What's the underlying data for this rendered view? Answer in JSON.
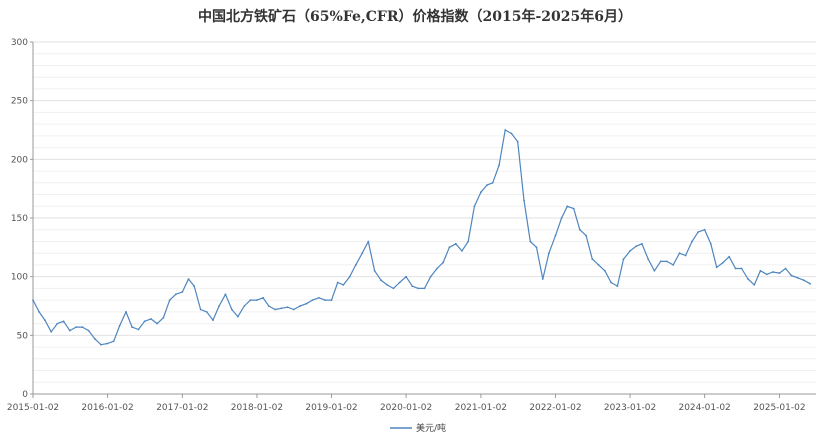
{
  "chart_data": {
    "type": "line",
    "title": "中国北方铁矿石（65%Fe,CFR）价格指数（2015年-2025年6月）",
    "xlabel": "",
    "ylabel": "",
    "ylim": [
      0,
      300
    ],
    "y_ticks": [
      "0",
      "50",
      "100",
      "150",
      "200",
      "250",
      "300"
    ],
    "x_ticks": [
      "2015-01-02",
      "2016-01-02",
      "2017-01-02",
      "2018-01-02",
      "2019-01-02",
      "2020-01-02",
      "2021-01-02",
      "2022-01-02",
      "2023-01-02",
      "2024-01-02",
      "2025-01-02"
    ],
    "grid": true,
    "legend_position": "bottom",
    "series": [
      {
        "name": "美元/吨",
        "color": "#4e86bf",
        "points": [
          [
            "2015-01-02",
            80
          ],
          [
            "2015-02-01",
            70
          ],
          [
            "2015-03-01",
            63
          ],
          [
            "2015-04-01",
            53
          ],
          [
            "2015-05-01",
            60
          ],
          [
            "2015-06-01",
            62
          ],
          [
            "2015-07-01",
            54
          ],
          [
            "2015-08-01",
            57
          ],
          [
            "2015-09-01",
            57
          ],
          [
            "2015-10-01",
            54
          ],
          [
            "2015-11-01",
            47
          ],
          [
            "2015-12-01",
            42
          ],
          [
            "2016-01-02",
            43
          ],
          [
            "2016-02-01",
            45
          ],
          [
            "2016-03-01",
            58
          ],
          [
            "2016-04-01",
            70
          ],
          [
            "2016-05-01",
            57
          ],
          [
            "2016-06-01",
            55
          ],
          [
            "2016-07-01",
            62
          ],
          [
            "2016-08-01",
            64
          ],
          [
            "2016-09-01",
            60
          ],
          [
            "2016-10-01",
            65
          ],
          [
            "2016-11-01",
            80
          ],
          [
            "2016-12-01",
            85
          ],
          [
            "2017-01-02",
            87
          ],
          [
            "2017-02-01",
            98
          ],
          [
            "2017-03-01",
            92
          ],
          [
            "2017-04-01",
            72
          ],
          [
            "2017-05-01",
            70
          ],
          [
            "2017-06-01",
            63
          ],
          [
            "2017-07-01",
            75
          ],
          [
            "2017-08-01",
            85
          ],
          [
            "2017-09-01",
            72
          ],
          [
            "2017-10-01",
            66
          ],
          [
            "2017-11-01",
            75
          ],
          [
            "2017-12-01",
            80
          ],
          [
            "2018-01-02",
            80
          ],
          [
            "2018-02-01",
            82
          ],
          [
            "2018-03-01",
            75
          ],
          [
            "2018-04-01",
            72
          ],
          [
            "2018-05-01",
            73
          ],
          [
            "2018-06-01",
            74
          ],
          [
            "2018-07-01",
            72
          ],
          [
            "2018-08-01",
            75
          ],
          [
            "2018-09-01",
            77
          ],
          [
            "2018-10-01",
            80
          ],
          [
            "2018-11-01",
            82
          ],
          [
            "2018-12-01",
            80
          ],
          [
            "2019-01-02",
            80
          ],
          [
            "2019-02-01",
            95
          ],
          [
            "2019-03-01",
            93
          ],
          [
            "2019-04-01",
            100
          ],
          [
            "2019-05-01",
            110
          ],
          [
            "2019-06-01",
            120
          ],
          [
            "2019-07-01",
            130
          ],
          [
            "2019-08-01",
            105
          ],
          [
            "2019-09-01",
            97
          ],
          [
            "2019-10-01",
            93
          ],
          [
            "2019-11-01",
            90
          ],
          [
            "2019-12-01",
            95
          ],
          [
            "2020-01-02",
            100
          ],
          [
            "2020-02-01",
            92
          ],
          [
            "2020-03-01",
            90
          ],
          [
            "2020-04-01",
            90
          ],
          [
            "2020-05-01",
            100
          ],
          [
            "2020-06-01",
            107
          ],
          [
            "2020-07-01",
            112
          ],
          [
            "2020-08-01",
            125
          ],
          [
            "2020-09-01",
            128
          ],
          [
            "2020-10-01",
            122
          ],
          [
            "2020-11-01",
            130
          ],
          [
            "2020-12-01",
            160
          ],
          [
            "2021-01-02",
            172
          ],
          [
            "2021-02-01",
            178
          ],
          [
            "2021-03-01",
            180
          ],
          [
            "2021-04-01",
            195
          ],
          [
            "2021-05-01",
            225
          ],
          [
            "2021-06-01",
            222
          ],
          [
            "2021-07-01",
            215
          ],
          [
            "2021-08-01",
            165
          ],
          [
            "2021-09-01",
            130
          ],
          [
            "2021-10-01",
            125
          ],
          [
            "2021-11-01",
            98
          ],
          [
            "2021-12-01",
            120
          ],
          [
            "2022-01-02",
            135
          ],
          [
            "2022-02-01",
            150
          ],
          [
            "2022-03-01",
            160
          ],
          [
            "2022-04-01",
            158
          ],
          [
            "2022-05-01",
            140
          ],
          [
            "2022-06-01",
            135
          ],
          [
            "2022-07-01",
            115
          ],
          [
            "2022-08-01",
            110
          ],
          [
            "2022-09-01",
            105
          ],
          [
            "2022-10-01",
            95
          ],
          [
            "2022-11-01",
            92
          ],
          [
            "2022-12-01",
            115
          ],
          [
            "2023-01-02",
            122
          ],
          [
            "2023-02-01",
            126
          ],
          [
            "2023-03-01",
            128
          ],
          [
            "2023-04-01",
            115
          ],
          [
            "2023-05-01",
            105
          ],
          [
            "2023-06-01",
            113
          ],
          [
            "2023-07-01",
            113
          ],
          [
            "2023-08-01",
            110
          ],
          [
            "2023-09-01",
            120
          ],
          [
            "2023-10-01",
            118
          ],
          [
            "2023-11-01",
            130
          ],
          [
            "2023-12-01",
            138
          ],
          [
            "2024-01-02",
            140
          ],
          [
            "2024-02-01",
            128
          ],
          [
            "2024-03-01",
            108
          ],
          [
            "2024-04-01",
            112
          ],
          [
            "2024-05-01",
            117
          ],
          [
            "2024-06-01",
            107
          ],
          [
            "2024-07-01",
            107
          ],
          [
            "2024-08-01",
            98
          ],
          [
            "2024-09-01",
            93
          ],
          [
            "2024-10-01",
            105
          ],
          [
            "2024-11-01",
            102
          ],
          [
            "2024-12-01",
            104
          ],
          [
            "2025-01-02",
            103
          ],
          [
            "2025-02-01",
            107
          ],
          [
            "2025-03-01",
            101
          ],
          [
            "2025-04-01",
            99
          ],
          [
            "2025-05-01",
            97
          ],
          [
            "2025-06-01",
            94
          ]
        ]
      }
    ]
  }
}
